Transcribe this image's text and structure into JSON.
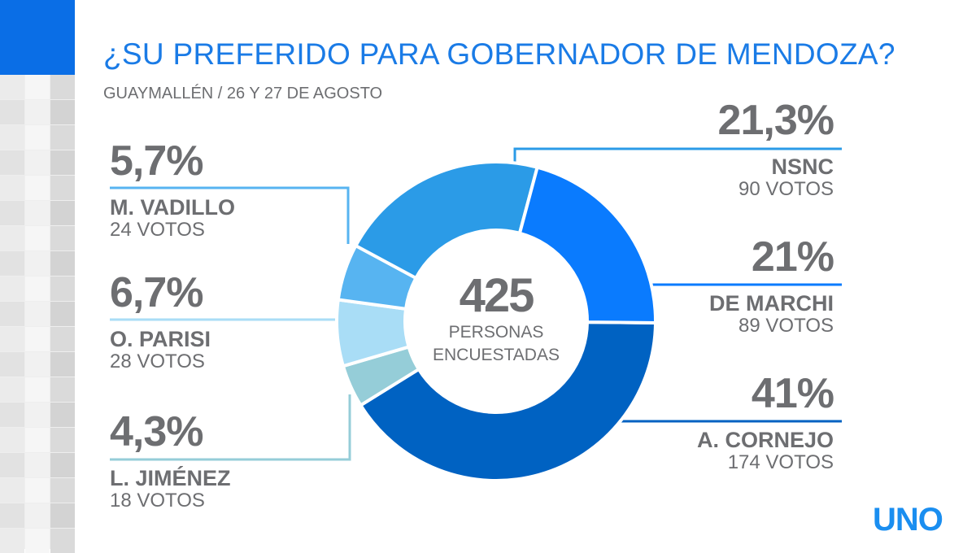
{
  "title": "¿SU PREFERIDO PARA GOBERNADOR DE MENDOZA?",
  "subtitle": "GUAYMALLÉN / 26 Y 27 DE AGOSTO",
  "logo": "UNO",
  "center": {
    "total": "425",
    "label_line1": "PERSONAS",
    "label_line2": "ENCUESTADAS"
  },
  "chart_data": {
    "type": "pie",
    "title": "¿SU PREFERIDO PARA GOBERNADOR DE MENDOZA?",
    "subtitle": "GUAYMALLÉN / 26 Y 27 DE AGOSTO",
    "total": 425,
    "slices": [
      {
        "name": "A. CORNEJO",
        "value": 41,
        "label": "41%",
        "votes": "174 VOTOS",
        "color": "#0062c2"
      },
      {
        "name": "L. JIMÉNEZ",
        "value": 4.3,
        "label": "4,3%",
        "votes": "18 VOTOS",
        "color": "#95cdd8"
      },
      {
        "name": "O. PARISI",
        "value": 6.7,
        "label": "6,7%",
        "votes": "28 VOTOS",
        "color": "#a9ddf6"
      },
      {
        "name": "M. VADILLO",
        "value": 5.7,
        "label": "5,7%",
        "votes": "24 VOTOS",
        "color": "#57b4f1"
      },
      {
        "name": "NSNC",
        "value": 21.3,
        "label": "21,3%",
        "votes": "90 VOTOS",
        "color": "#2b9be7"
      },
      {
        "name": "DE MARCHI",
        "value": 21,
        "label": "21%",
        "votes": "89 VOTOS",
        "color": "#0a7bfe"
      }
    ]
  }
}
